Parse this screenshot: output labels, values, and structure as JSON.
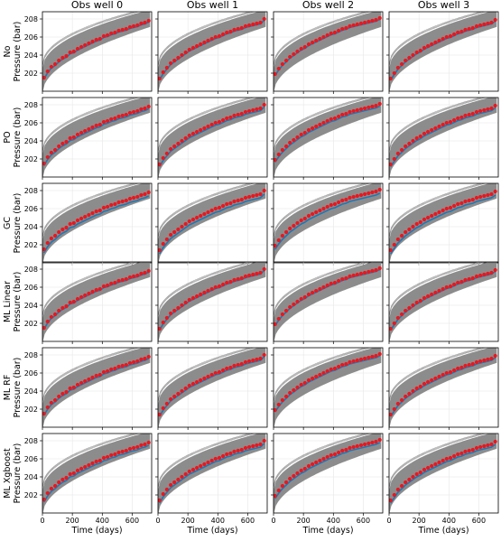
{
  "chart_data": {
    "type": "line",
    "layout": "grid",
    "columns": [
      "Obs well 0",
      "Obs well 1",
      "Obs well 2",
      "Obs well 3"
    ],
    "rows": [
      {
        "label": "No",
        "ylabel": "Pressure (bar)"
      },
      {
        "label": "PO",
        "ylabel": "Pressure (bar)"
      },
      {
        "label": "GC",
        "ylabel": "Pressure (bar)"
      },
      {
        "label": "ML Linear",
        "ylabel": "Pressure (bar)"
      },
      {
        "label": "ML RF",
        "ylabel": "Pressure (bar)"
      },
      {
        "label": "ML Xgboost",
        "ylabel": "Pressure (bar)"
      }
    ],
    "xlabel": "Time (days)",
    "xlim": [
      0,
      730
    ],
    "ylim": [
      200,
      208.8
    ],
    "xticks": [
      0,
      200,
      400,
      600
    ],
    "yticks": [
      202,
      204,
      206,
      208
    ],
    "grid": true,
    "ensemble_color": "#808080",
    "observed_color": "#e8171f",
    "simulated_color": "#1f77b4",
    "observed_x": [
      10,
      35,
      60,
      85,
      110,
      135,
      160,
      185,
      210,
      235,
      260,
      285,
      310,
      335,
      360,
      385,
      410,
      435,
      460,
      485,
      510,
      535,
      560,
      585,
      610,
      635,
      660,
      685,
      710
    ],
    "wells": [
      {
        "name": "Obs well 0",
        "observed": [
          201.5,
          202.2,
          202.7,
          203.0,
          203.4,
          203.7,
          203.9,
          204.3,
          204.4,
          204.7,
          204.9,
          205.1,
          205.3,
          205.5,
          205.7,
          205.8,
          206.1,
          206.2,
          206.4,
          206.5,
          206.7,
          206.8,
          206.9,
          207.1,
          207.2,
          207.3,
          207.5,
          207.6,
          207.8
        ]
      },
      {
        "name": "Obs well 1",
        "observed": [
          201.4,
          202.1,
          202.6,
          203.1,
          203.4,
          203.7,
          204.0,
          204.3,
          204.6,
          204.8,
          205.0,
          205.2,
          205.4,
          205.6,
          205.8,
          206.0,
          206.1,
          206.3,
          206.5,
          206.6,
          206.8,
          206.9,
          207.0,
          207.2,
          207.3,
          207.4,
          207.5,
          207.6,
          208.0
        ]
      },
      {
        "name": "Obs well 2",
        "observed": [
          201.9,
          202.5,
          203.0,
          203.4,
          203.8,
          204.1,
          204.4,
          204.7,
          204.9,
          205.2,
          205.4,
          205.6,
          205.8,
          206.0,
          206.2,
          206.4,
          206.5,
          206.7,
          206.9,
          207.0,
          207.2,
          207.3,
          207.4,
          207.5,
          207.6,
          207.7,
          207.8,
          207.9,
          208.1
        ]
      },
      {
        "name": "Obs well 3",
        "observed": [
          201.4,
          202.0,
          202.6,
          203.0,
          203.4,
          203.7,
          204.0,
          204.3,
          204.5,
          204.8,
          205.0,
          205.2,
          205.4,
          205.6,
          205.8,
          206.0,
          206.1,
          206.3,
          206.5,
          206.6,
          206.8,
          206.9,
          207.0,
          207.2,
          207.3,
          207.4,
          207.5,
          207.6,
          207.9
        ]
      }
    ],
    "simulated_offset": [
      0,
      -0.1,
      -0.25,
      0,
      -0.05,
      -0.15
    ],
    "ensemble_spread": {
      "lower": -1.2,
      "upper": 1.5
    }
  }
}
